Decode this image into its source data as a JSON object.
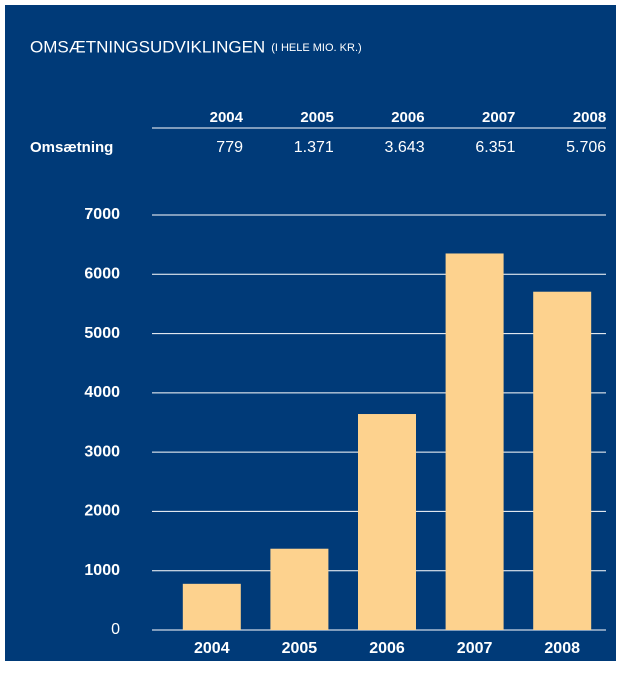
{
  "chart_data": {
    "type": "bar",
    "title": "OMSÆTNINGSUDVIKLINGEN",
    "subtitle": "(I HELE MIO. KR.)",
    "table_row_label": "Omsætning",
    "categories": [
      "2004",
      "2005",
      "2006",
      "2007",
      "2008"
    ],
    "values": [
      779,
      1371,
      3643,
      6351,
      5706
    ],
    "value_labels": [
      "779",
      "1.371",
      "3.643",
      "6.351",
      "5.706"
    ],
    "color": "#fdd28e",
    "ylim": [
      0,
      7000
    ],
    "yticks": [
      0,
      1000,
      2000,
      3000,
      4000,
      5000,
      6000,
      7000
    ],
    "grid": true
  }
}
